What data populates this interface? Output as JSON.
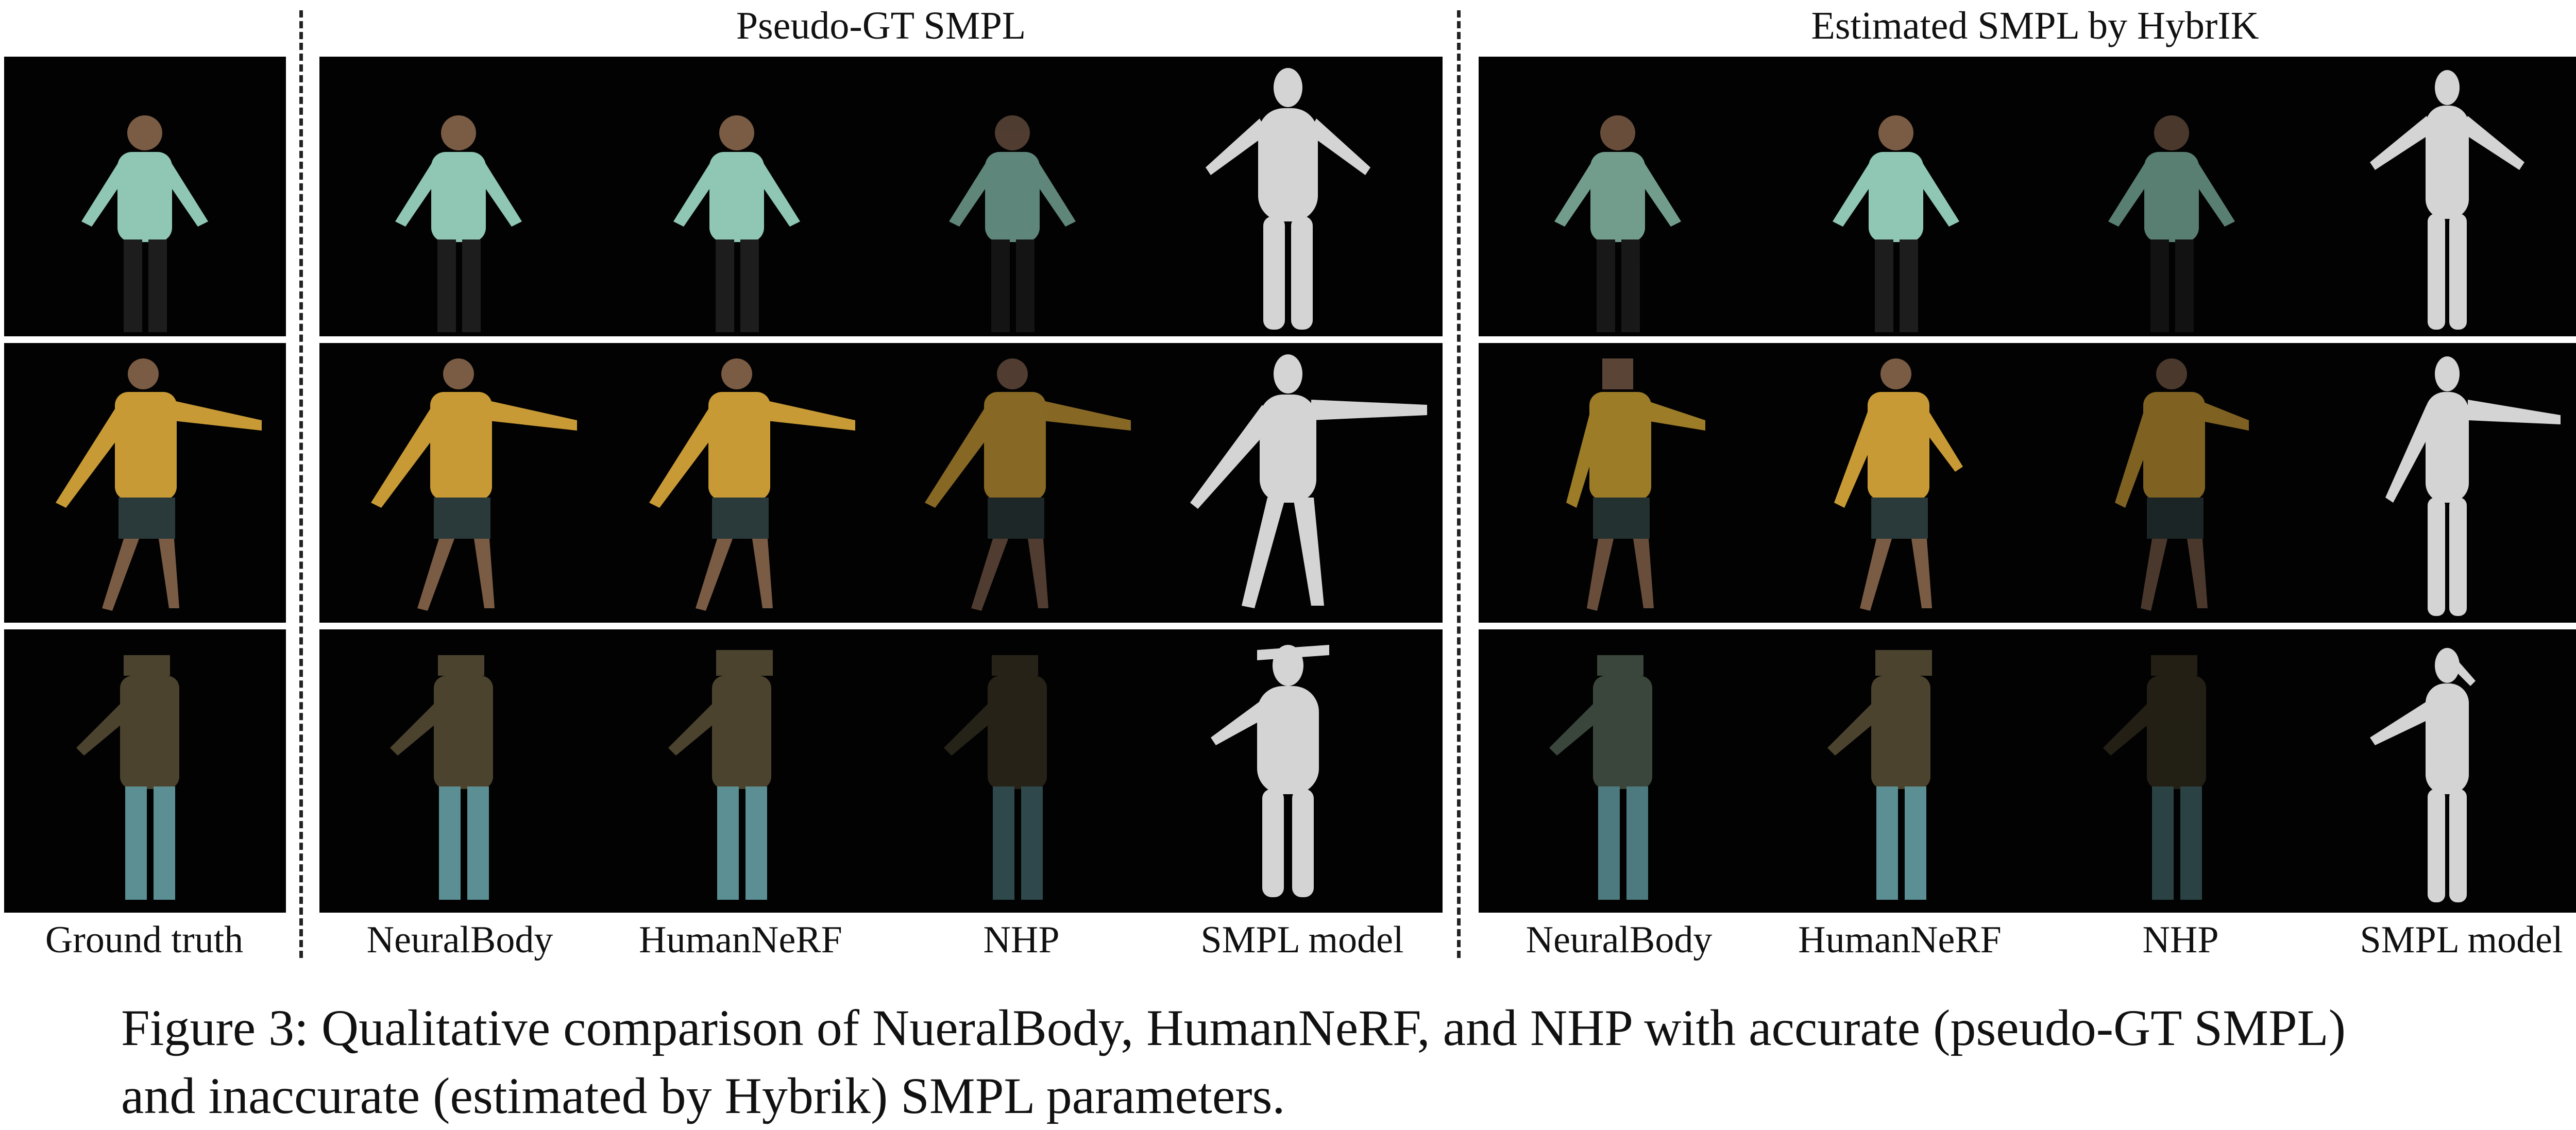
{
  "figure": {
    "headers": {
      "left": "Pseudo-GT SMPL",
      "right": "Estimated SMPL by HybrIK"
    },
    "column_labels": {
      "ground_truth": "Ground truth",
      "pseudo_gt": [
        "NeuralBody",
        "HumanNeRF",
        "NHP",
        "SMPL model"
      ],
      "estimated": [
        "NeuralBody",
        "HumanNeRF",
        "NHP",
        "SMPL model"
      ]
    },
    "caption": {
      "line1": "Figure 3: Qualitative comparison of NueralBody, HumanNeRF, and NHP with accurate (pseudo-GT SMPL)",
      "line2": "and inaccurate (estimated by Hybrik) SMPL parameters."
    },
    "colors": {
      "row1_shirt": "#8fc7b4",
      "row1_pants": "#1d1d1d",
      "row2_shirt": "#c89a35",
      "row2_shorts": "#2a3a3a",
      "row3_shirt": "#4b432e",
      "row3_pants": "#5b8f94",
      "skin": "#7a5b44",
      "smpl": "#d4d4d4",
      "background": "#020202"
    }
  }
}
